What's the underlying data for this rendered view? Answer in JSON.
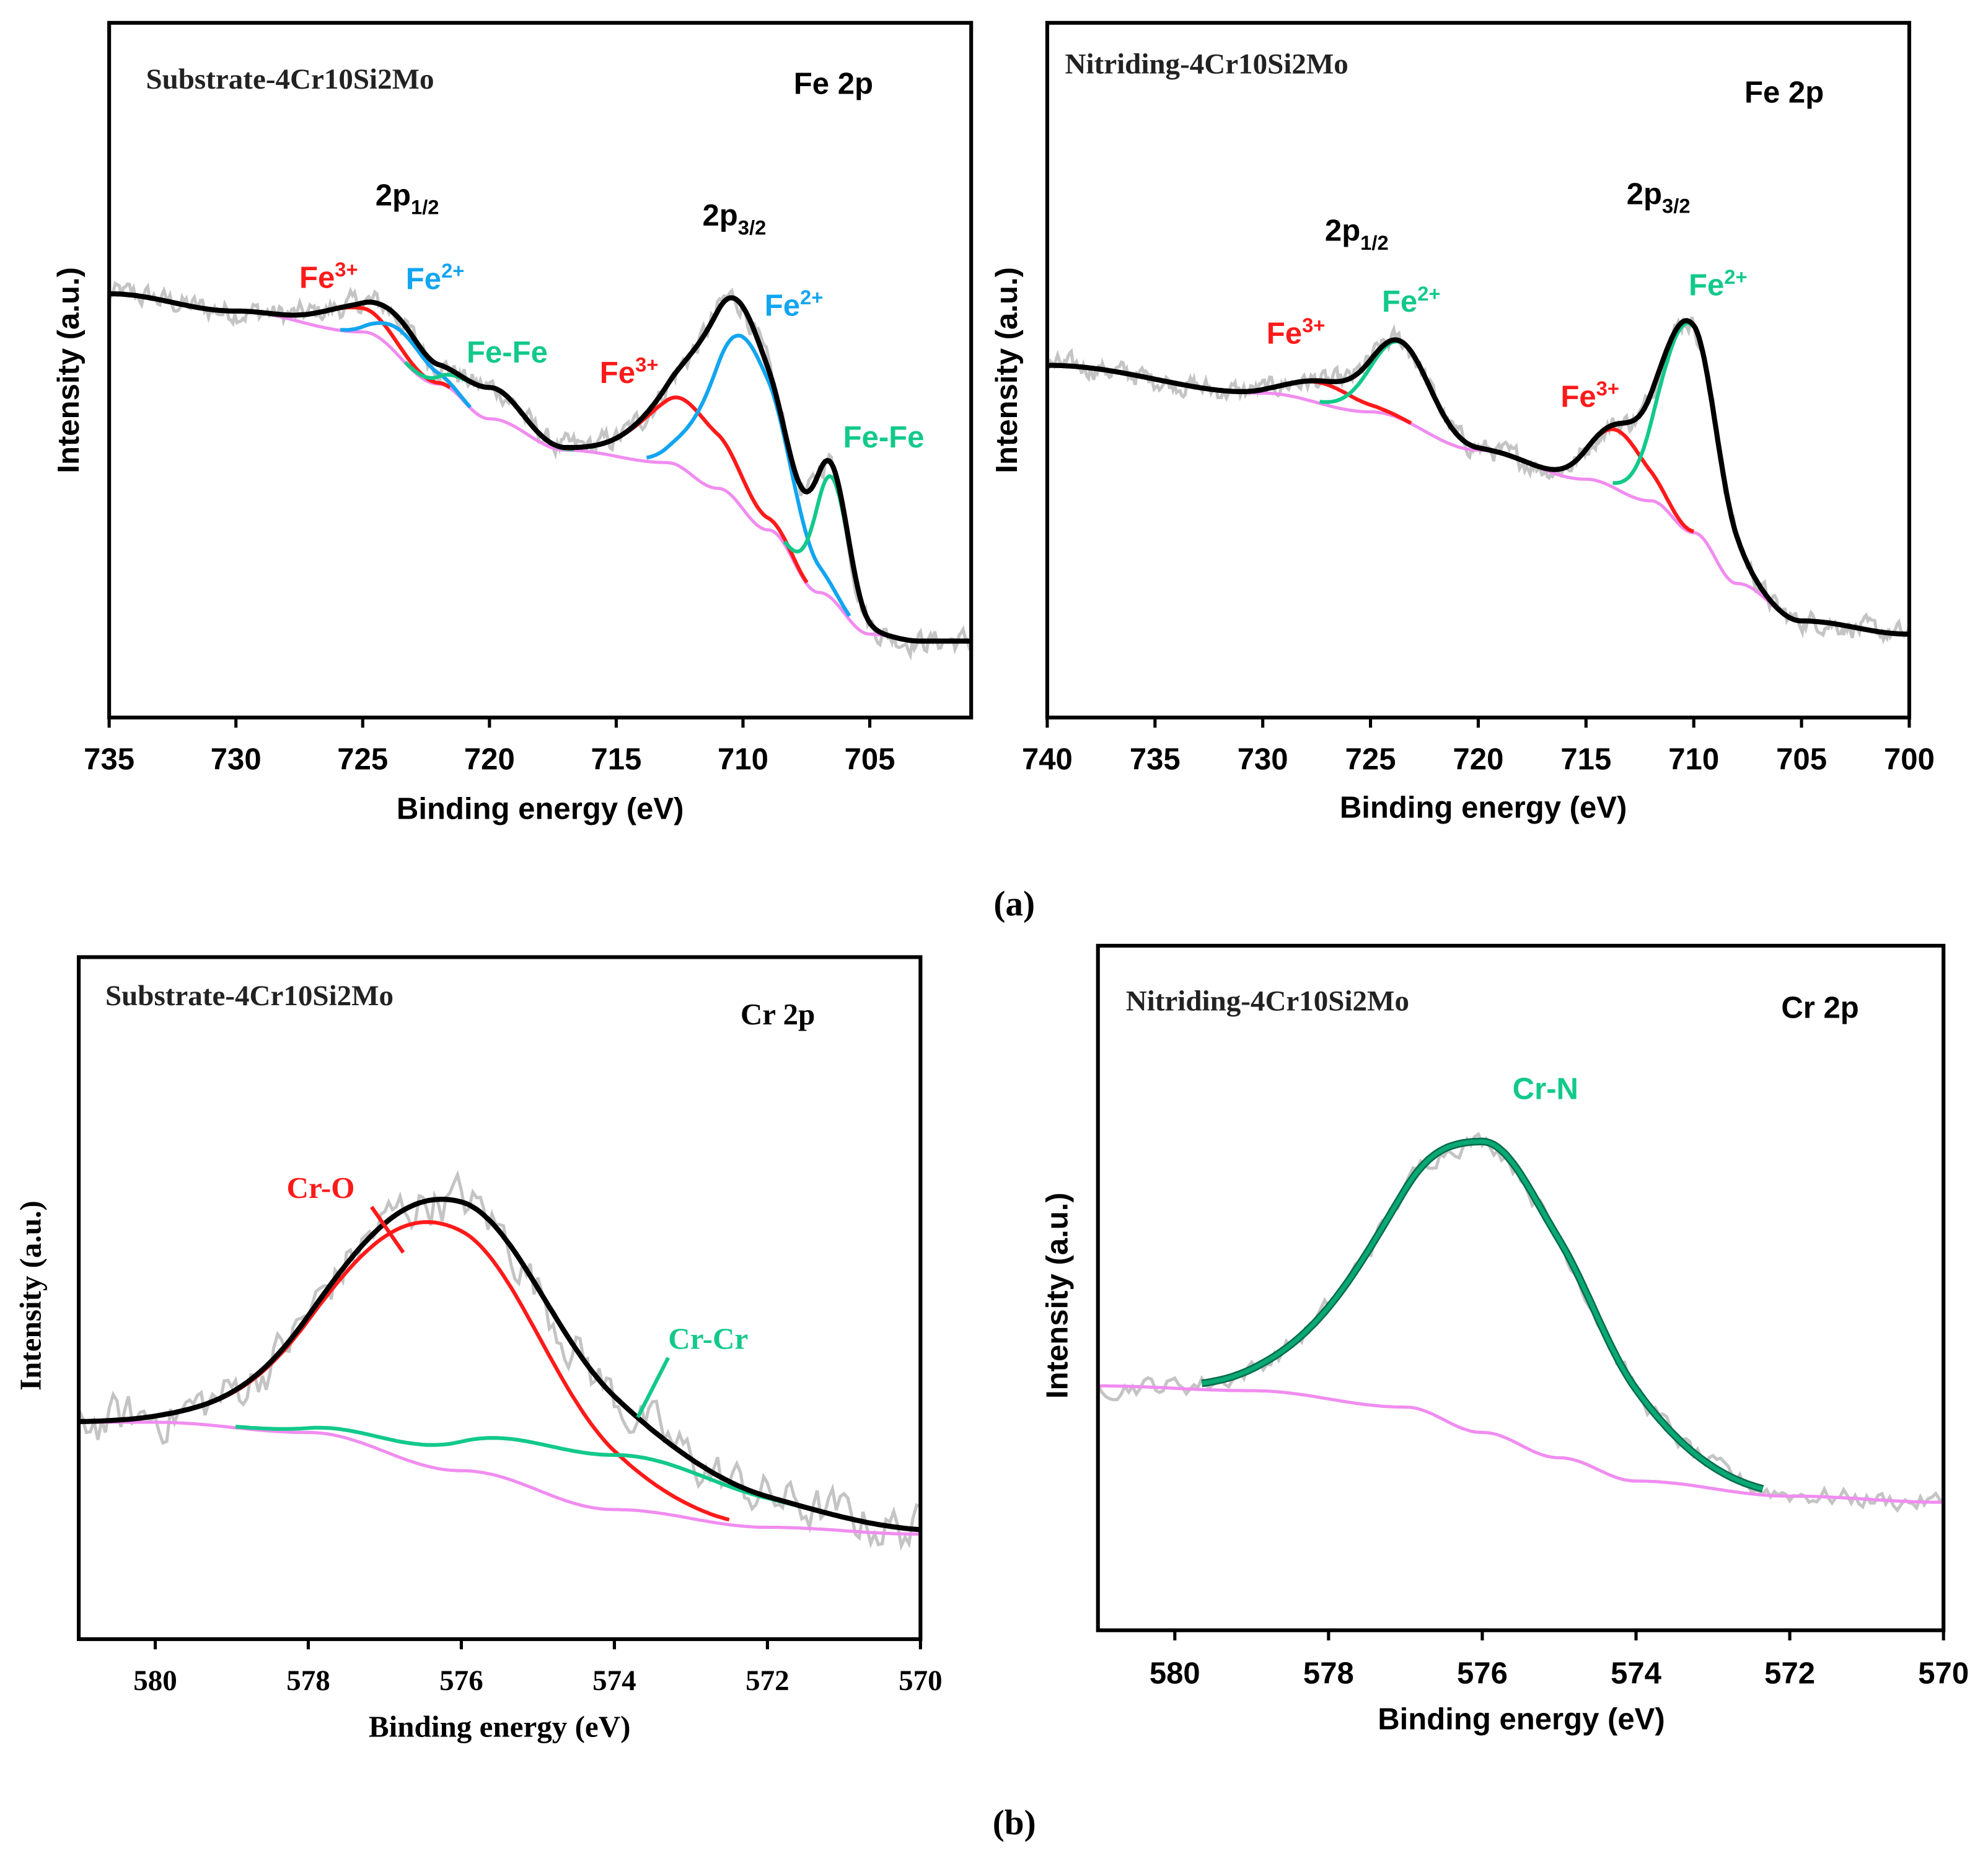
{
  "panel_labels": {
    "a": "(a)",
    "b": "(b)"
  },
  "chart_data": [
    {
      "type": "line",
      "sample": "Substrate-4Cr10Si2Mo",
      "title": "Fe 2p",
      "xlabel": "Binding energy (eV)",
      "ylabel": "Intensity (a.u.)",
      "xlim": [
        735,
        701
      ],
      "ylim": [
        0,
        1
      ],
      "xticks": [
        735,
        730,
        725,
        720,
        715,
        710,
        705
      ],
      "background": [
        [
          735,
          0.61
        ],
        [
          730,
          0.585
        ],
        [
          725,
          0.555
        ],
        [
          722,
          0.48
        ],
        [
          720,
          0.43
        ],
        [
          717,
          0.385
        ],
        [
          713,
          0.367
        ],
        [
          711,
          0.33
        ],
        [
          709,
          0.27
        ],
        [
          707,
          0.18
        ],
        [
          705,
          0.12
        ],
        [
          703,
          0.11
        ],
        [
          701,
          0.11
        ]
      ],
      "components": [
        {
          "label": "Fe3+ 2p1/2",
          "center": 725.3,
          "amplitude": 0.035,
          "fwhm": 3.2,
          "color": "#ff1a1a"
        },
        {
          "label": "Fe2+ 2p1/2",
          "center": 723.3,
          "amplitude": 0.04,
          "fwhm": 2.2,
          "color": "#12a5f0"
        },
        {
          "label": "Fe-Fe 2p1/2",
          "center": 720.0,
          "amplitude": 0.045,
          "fwhm": 2.8,
          "color": "#12c98a"
        },
        {
          "label": "Fe3+ 2p3/2",
          "center": 712.2,
          "amplitude": 0.1,
          "fwhm": 4.0,
          "color": "#ff1a1a"
        },
        {
          "label": "Fe2+ 2p3/2",
          "center": 709.8,
          "amplitude": 0.25,
          "fwhm": 3.4,
          "color": "#12a5f0"
        },
        {
          "label": "Fe-Fe 2p3/2",
          "center": 706.5,
          "amplitude": 0.175,
          "fwhm": 1.6,
          "color": "#12c98a"
        }
      ],
      "annotations": [
        {
          "base": "2p",
          "sub": "1/2",
          "color": "#000000"
        },
        {
          "base": "2p",
          "sub": "3/2",
          "color": "#000000"
        },
        {
          "base": "Fe",
          "sup": "3+",
          "color": "#ff1a1a"
        },
        {
          "base": "Fe",
          "sup": "2+",
          "color": "#12a5f0"
        },
        {
          "base": "Fe-Fe",
          "color": "#12c98a"
        },
        {
          "base": "Fe",
          "sup": "3+",
          "color": "#ff1a1a"
        },
        {
          "base": "Fe",
          "sup": "2+",
          "color": "#12a5f0"
        },
        {
          "base": "Fe-Fe",
          "color": "#12c98a"
        }
      ]
    },
    {
      "type": "line",
      "sample": "Nitriding-4Cr10Si2Mo",
      "title": "Fe 2p",
      "xlabel": "Binding energy (eV)",
      "ylabel": "Intensity (a.u.)",
      "xlim": [
        740,
        700
      ],
      "ylim": [
        0,
        1
      ],
      "xticks": [
        740,
        735,
        730,
        725,
        720,
        715,
        710,
        705,
        700
      ],
      "background": [
        [
          740,
          0.507
        ],
        [
          730,
          0.467
        ],
        [
          725,
          0.44
        ],
        [
          720,
          0.385
        ],
        [
          715,
          0.343
        ],
        [
          712,
          0.312
        ],
        [
          710,
          0.266
        ],
        [
          708,
          0.193
        ],
        [
          705,
          0.139
        ],
        [
          700,
          0.12
        ]
      ],
      "components": [
        {
          "label": "Fe3+ 2p1/2",
          "center": 727.2,
          "amplitude": 0.03,
          "fwhm": 3.5,
          "color": "#ff1a1a"
        },
        {
          "label": "Fe2+ 2p1/2",
          "center": 723.6,
          "amplitude": 0.11,
          "fwhm": 3.2,
          "color": "#12c98a"
        },
        {
          "label": "Fe3+ 2p3/2",
          "center": 713.5,
          "amplitude": 0.085,
          "fwhm": 3.0,
          "color": "#ff1a1a"
        },
        {
          "label": "Fe2+ 2p3/2",
          "center": 710.2,
          "amplitude": 0.3,
          "fwhm": 3.0,
          "color": "#12c98a"
        }
      ],
      "annotations": [
        {
          "base": "2p",
          "sub": "1/2",
          "color": "#000000"
        },
        {
          "base": "2p",
          "sub": "3/2",
          "color": "#000000"
        },
        {
          "base": "Fe",
          "sup": "3+",
          "color": "#ff1a1a"
        },
        {
          "base": "Fe",
          "sup": "2+",
          "color": "#12c98a"
        },
        {
          "base": "Fe",
          "sup": "3+",
          "color": "#ff1a1a"
        },
        {
          "base": "Fe",
          "sup": "2+",
          "color": "#12c98a"
        }
      ]
    },
    {
      "type": "line",
      "sample": "Substrate-4Cr10Si2Mo",
      "title": "Cr 2p",
      "xlabel": "Binding energy (eV)",
      "ylabel": "Intensity (a.u.)",
      "xlim": [
        581,
        570
      ],
      "ylim": [
        0,
        1
      ],
      "xticks": [
        580,
        578,
        576,
        574,
        572,
        570
      ],
      "background": [
        [
          581,
          0.318
        ],
        [
          580,
          0.318
        ],
        [
          578,
          0.303
        ],
        [
          576,
          0.247
        ],
        [
          574,
          0.19
        ],
        [
          572,
          0.164
        ],
        [
          570,
          0.154
        ]
      ],
      "components": [
        {
          "label": "Cr-O",
          "center": 576.3,
          "amplitude": 0.36,
          "fwhm": 3.2,
          "color": "#ff1a1a"
        },
        {
          "label": "Cr-Cr",
          "center": 574.0,
          "amplitude": 0.08,
          "fwhm": 4.2,
          "color": "#12c98a"
        }
      ],
      "annotations": [
        {
          "base": "Cr-O",
          "color": "#ff1a1a"
        },
        {
          "base": "Cr-Cr",
          "color": "#12c98a"
        }
      ]
    },
    {
      "type": "line",
      "sample": "Nitriding-4Cr10Si2Mo",
      "title": "Cr 2p",
      "xlabel": "Binding energy (eV)",
      "ylabel": "Intensity (a.u.)",
      "xlim": [
        581,
        570
      ],
      "ylim": [
        0,
        1
      ],
      "xticks": [
        580,
        578,
        576,
        574,
        572,
        570
      ],
      "background": [
        [
          581,
          0.357
        ],
        [
          579,
          0.35
        ],
        [
          577,
          0.326
        ],
        [
          576,
          0.289
        ],
        [
          575,
          0.252
        ],
        [
          574,
          0.218
        ],
        [
          572,
          0.196
        ],
        [
          570,
          0.187
        ]
      ],
      "components": [
        {
          "label": "Cr-N",
          "center": 576.0,
          "amplitude": 0.425,
          "fwhm": 3.1,
          "color": "#0aa874"
        }
      ],
      "annotations": [
        {
          "base": "Cr-N",
          "color": "#12c98a"
        }
      ]
    }
  ]
}
